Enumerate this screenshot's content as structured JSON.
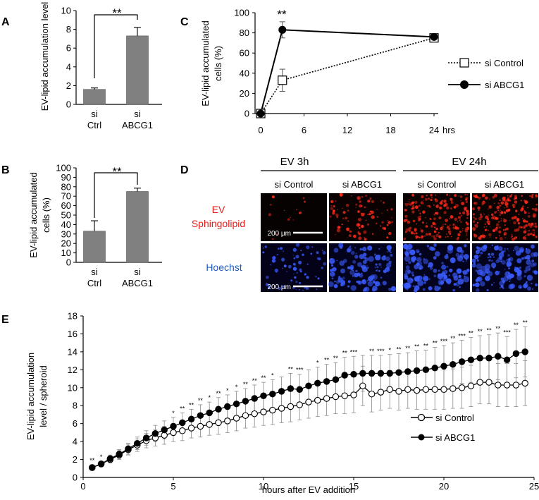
{
  "panel_labels": {
    "a": "A",
    "b": "B",
    "c": "C",
    "d": "D",
    "e": "E"
  },
  "colors": {
    "bar": "#808080",
    "line": "#000000",
    "red_label": "#e8201a",
    "blue_label": "#1f5bbf"
  },
  "chart_data": [
    {
      "id": "A",
      "type": "bar",
      "ylabel": "EV-lipid accumulation level",
      "ylim": [
        0,
        10
      ],
      "yticks": [
        "0",
        "2",
        "4",
        "6",
        "8",
        "10"
      ],
      "categories": [
        {
          "line1": "si",
          "line2": "Ctrl"
        },
        {
          "line1": "si",
          "line2": "ABCG1"
        }
      ],
      "values": [
        1.6,
        7.3
      ],
      "errors": [
        0.15,
        0.9
      ],
      "significance": "**"
    },
    {
      "id": "B",
      "type": "bar",
      "ylabel_line1": "EV-lipid accumulated",
      "ylabel_line2": "cells (%)",
      "ylim": [
        0,
        100
      ],
      "yticks": [
        "0",
        "10",
        "20",
        "30",
        "40",
        "50",
        "60",
        "70",
        "80",
        "90",
        "100"
      ],
      "categories": [
        {
          "line1": "si",
          "line2": "Ctrl"
        },
        {
          "line1": "si",
          "line2": "ABCG1"
        }
      ],
      "values": [
        33,
        75
      ],
      "errors": [
        11,
        3.5
      ],
      "significance": "**"
    },
    {
      "id": "C",
      "type": "line",
      "ylabel_line1": "EV-lipid accumulated",
      "ylabel_line2": "cells (%)",
      "xunit": "hrs",
      "ylim": [
        0,
        100
      ],
      "xlim": [
        0,
        24
      ],
      "yticks": [
        "0",
        "20",
        "40",
        "60",
        "80",
        "100"
      ],
      "xticks": [
        "0",
        "6",
        "12",
        "18",
        "24"
      ],
      "series": [
        {
          "name": "si Control",
          "x": [
            0,
            3,
            24
          ],
          "y": [
            0,
            33,
            75
          ],
          "err": [
            0,
            11,
            2
          ]
        },
        {
          "name": "si ABCG1",
          "x": [
            0,
            3,
            24
          ],
          "y": [
            0,
            83,
            76
          ],
          "err": [
            0,
            8,
            2
          ]
        }
      ],
      "significance": "**"
    },
    {
      "id": "E",
      "type": "line",
      "xlabel": "hours after EV addition",
      "ylabel_line1": "EV-lipid accumulation",
      "ylabel_line2": "level / spheroid",
      "xlim": [
        0,
        25
      ],
      "ylim": [
        0,
        18
      ],
      "xticks": [
        "0",
        "5",
        "10",
        "15",
        "20",
        "25"
      ],
      "yticks": [
        "0",
        "2",
        "4",
        "6",
        "8",
        "10",
        "12",
        "14",
        "16",
        "18"
      ],
      "series": [
        {
          "name": "si Control",
          "x": [
            0.5,
            1,
            1.5,
            2,
            2.5,
            3,
            3.5,
            4,
            4.5,
            5,
            5.5,
            6,
            6.5,
            7,
            7.5,
            8,
            8.5,
            9,
            9.5,
            10,
            10.5,
            11,
            11.5,
            12,
            12.5,
            13,
            13.5,
            14,
            14.5,
            15,
            15.5,
            16,
            16.5,
            17,
            17.5,
            18,
            18.5,
            19,
            19.5,
            20,
            20.5,
            21,
            21.5,
            22,
            22.5,
            23,
            23.5,
            24,
            24.5
          ],
          "y": [
            1.1,
            1.5,
            2.0,
            2.5,
            3.1,
            3.6,
            4.1,
            4.4,
            4.7,
            5.0,
            5.2,
            5.5,
            5.7,
            5.9,
            6.1,
            6.3,
            6.6,
            6.9,
            7.1,
            7.3,
            7.5,
            7.7,
            7.9,
            8.1,
            8.4,
            8.6,
            8.8,
            9.0,
            9.1,
            9.2,
            10.2,
            9.3,
            9.5,
            9.8,
            9.6,
            9.8,
            9.7,
            9.8,
            9.8,
            9.8,
            9.9,
            10.0,
            10.2,
            10.6,
            10.6,
            10.3,
            10.3,
            10.3,
            10.5
          ],
          "err": [
            0.3,
            0.3,
            0.4,
            0.5,
            0.6,
            0.7,
            0.8,
            0.9,
            1.0,
            1.0,
            1.1,
            1.1,
            1.2,
            1.2,
            1.3,
            1.3,
            1.4,
            1.4,
            1.5,
            1.5,
            1.6,
            1.6,
            1.7,
            1.7,
            1.8,
            1.8,
            1.9,
            1.9,
            2.0,
            2.0,
            2.2,
            2.0,
            2.0,
            2.1,
            2.1,
            2.1,
            2.1,
            2.2,
            2.2,
            2.2,
            2.2,
            2.3,
            2.3,
            2.4,
            2.4,
            2.4,
            2.4,
            2.4,
            2.5
          ]
        },
        {
          "name": "si ABCG1",
          "x": [
            0.5,
            1,
            1.5,
            2,
            2.5,
            3,
            3.5,
            4,
            4.5,
            5,
            5.5,
            6,
            6.5,
            7,
            7.5,
            8,
            8.5,
            9,
            9.5,
            10,
            10.5,
            11,
            11.5,
            12,
            12.5,
            13,
            13.5,
            14,
            14.5,
            15,
            15.5,
            16,
            16.5,
            17,
            17.5,
            18,
            18.5,
            19,
            19.5,
            20,
            20.5,
            21,
            21.5,
            22,
            22.5,
            23,
            23.5,
            24,
            24.5
          ],
          "y": [
            1.1,
            1.5,
            2.1,
            2.6,
            3.2,
            3.8,
            4.4,
            4.9,
            5.3,
            5.7,
            6.1,
            6.5,
            6.9,
            7.2,
            7.6,
            7.9,
            8.2,
            8.5,
            8.8,
            9.1,
            9.3,
            9.6,
            9.9,
            9.8,
            10.2,
            10.5,
            10.7,
            10.9,
            11.4,
            11.5,
            11.6,
            11.6,
            11.6,
            11.6,
            11.7,
            11.8,
            11.9,
            12.0,
            12.2,
            12.4,
            12.6,
            12.9,
            13.1,
            13.3,
            13.3,
            13.5,
            13.1,
            13.8,
            14.0
          ],
          "err": [
            0.3,
            0.3,
            0.4,
            0.5,
            0.6,
            0.7,
            0.8,
            0.9,
            1.0,
            1.0,
            1.1,
            1.1,
            1.2,
            1.2,
            1.3,
            1.3,
            1.4,
            1.4,
            1.5,
            1.5,
            1.6,
            1.6,
            1.7,
            1.7,
            1.8,
            1.8,
            1.9,
            1.9,
            2.0,
            2.0,
            2.0,
            2.0,
            2.0,
            2.1,
            2.1,
            2.1,
            2.2,
            2.2,
            2.3,
            2.3,
            2.4,
            2.4,
            2.5,
            2.5,
            2.6,
            2.6,
            2.6,
            2.7,
            2.8
          ]
        }
      ],
      "significance": [
        {
          "x": 0.5,
          "label": "**"
        },
        {
          "x": 1.0,
          "label": "*"
        },
        {
          "x": 5.0,
          "label": "*"
        },
        {
          "x": 5.5,
          "label": "**"
        },
        {
          "x": 6.0,
          "label": "**"
        },
        {
          "x": 6.5,
          "label": "**"
        },
        {
          "x": 7.0,
          "label": "*"
        },
        {
          "x": 7.5,
          "label": "**"
        },
        {
          "x": 8.0,
          "label": "*"
        },
        {
          "x": 8.5,
          "label": "*"
        },
        {
          "x": 9.0,
          "label": "**"
        },
        {
          "x": 9.5,
          "label": "**"
        },
        {
          "x": 10.0,
          "label": "**"
        },
        {
          "x": 10.5,
          "label": "*"
        },
        {
          "x": 11.5,
          "label": "**"
        },
        {
          "x": 12.0,
          "label": "***"
        },
        {
          "x": 13.0,
          "label": "*"
        },
        {
          "x": 13.5,
          "label": "**"
        },
        {
          "x": 14.0,
          "label": "**"
        },
        {
          "x": 14.5,
          "label": "**"
        },
        {
          "x": 15.0,
          "label": "***"
        },
        {
          "x": 16.0,
          "label": "**"
        },
        {
          "x": 16.5,
          "label": "***"
        },
        {
          "x": 17.0,
          "label": "*"
        },
        {
          "x": 17.5,
          "label": "**"
        },
        {
          "x": 18.0,
          "label": "**"
        },
        {
          "x": 18.5,
          "label": "**"
        },
        {
          "x": 19.0,
          "label": "**"
        },
        {
          "x": 19.5,
          "label": "**"
        },
        {
          "x": 20.0,
          "label": "***"
        },
        {
          "x": 20.5,
          "label": "**"
        },
        {
          "x": 21.0,
          "label": "***"
        },
        {
          "x": 21.5,
          "label": "**"
        },
        {
          "x": 22.0,
          "label": "**"
        },
        {
          "x": 22.5,
          "label": "**"
        },
        {
          "x": 23.0,
          "label": "**"
        },
        {
          "x": 23.5,
          "label": "***"
        },
        {
          "x": 24.0,
          "label": "**"
        },
        {
          "x": 24.5,
          "label": "**"
        }
      ]
    }
  ],
  "panel_d": {
    "group1": "EV 3h",
    "group2": "EV 24h",
    "col_labels": [
      "si Control",
      "si ABCG1",
      "si Control",
      "si ABCG1"
    ],
    "row1_line1": "EV",
    "row1_line2": "Sphingolipid",
    "row2": "Hoechst",
    "scale_bar": "200 μm"
  }
}
